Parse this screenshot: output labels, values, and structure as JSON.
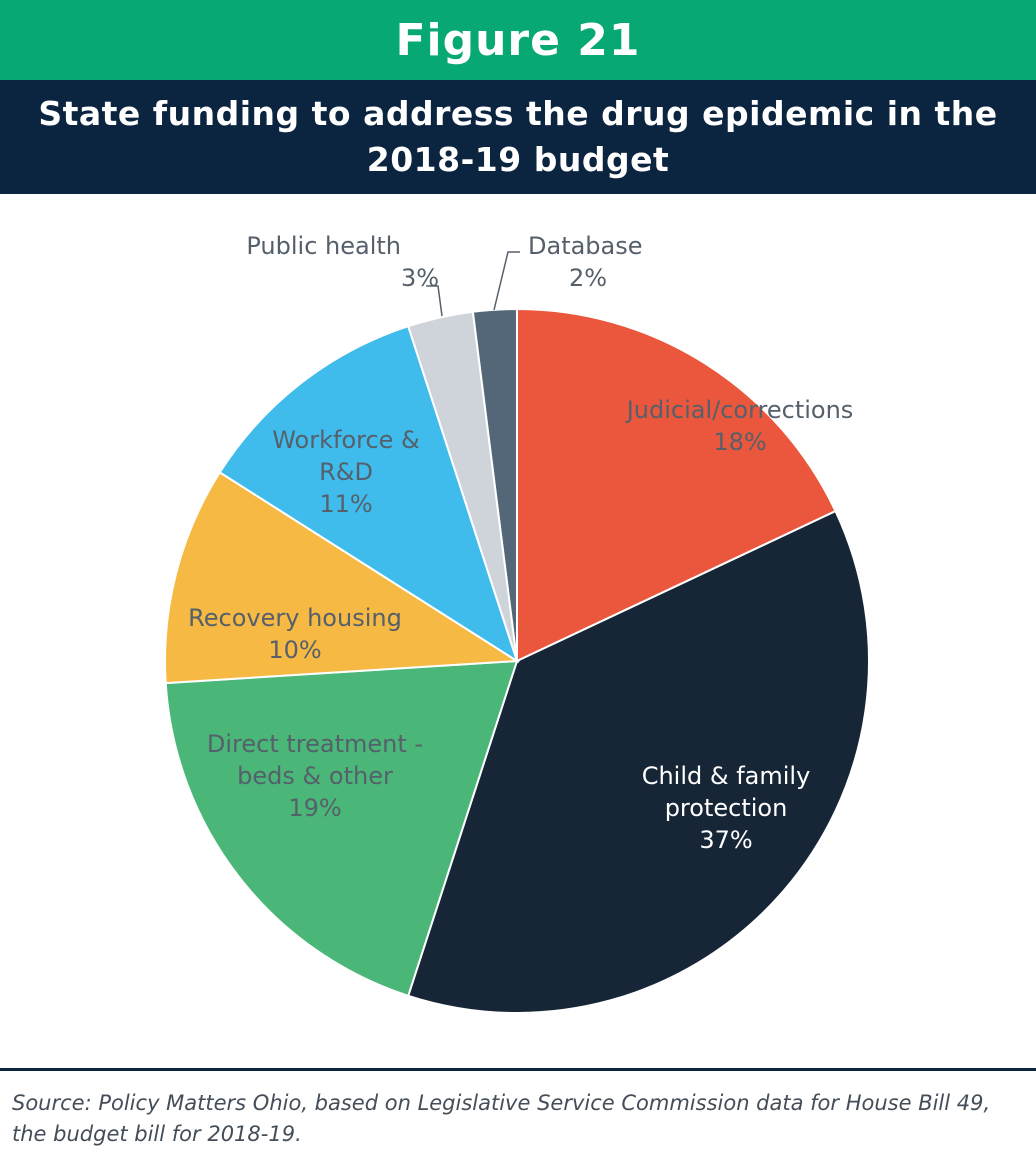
{
  "figure_label": "Figure 21",
  "title": "State funding to address the drug epidemic in the 2018-19 budget",
  "source": "Source: Policy Matters Ohio, based on Legislative Service Commission data for House Bill 49, the budget bill for 2018-19.",
  "colors": {
    "header_bar": "#07a874",
    "title_bar": "#0b2440",
    "judicial": "#ea573d",
    "child_family": "#172637",
    "direct_treatment": "#4ab778",
    "recovery_housing": "#f5b944",
    "workforce": "#40bcec",
    "public_health": "#cfd4db",
    "database": "#546779"
  },
  "chart_data": {
    "type": "pie",
    "slices": [
      {
        "label": "Judicial/corrections",
        "value": 18,
        "display": "18%",
        "color": "#ea573d",
        "label_color": "#55606b"
      },
      {
        "label": "Child & family protection",
        "value": 37,
        "display": "37%",
        "color": "#172637",
        "label_color": "#ffffff"
      },
      {
        "label": "Direct treatment - beds & other",
        "value": 19,
        "display": "19%",
        "color": "#4ab778",
        "label_color": "#55606b"
      },
      {
        "label": "Recovery housing",
        "value": 10,
        "display": "10%",
        "color": "#f5b944",
        "label_color": "#55606b"
      },
      {
        "label": "Workforce & R&D",
        "value": 11,
        "display": "11%",
        "color": "#40bcec",
        "label_color": "#55606b"
      },
      {
        "label": "Public health",
        "value": 3,
        "display": "3%",
        "color": "#cfd4db",
        "label_color": "#55606b"
      },
      {
        "label": "Database",
        "value": 2,
        "display": "2%",
        "color": "#546779",
        "label_color": "#55606b"
      }
    ]
  }
}
